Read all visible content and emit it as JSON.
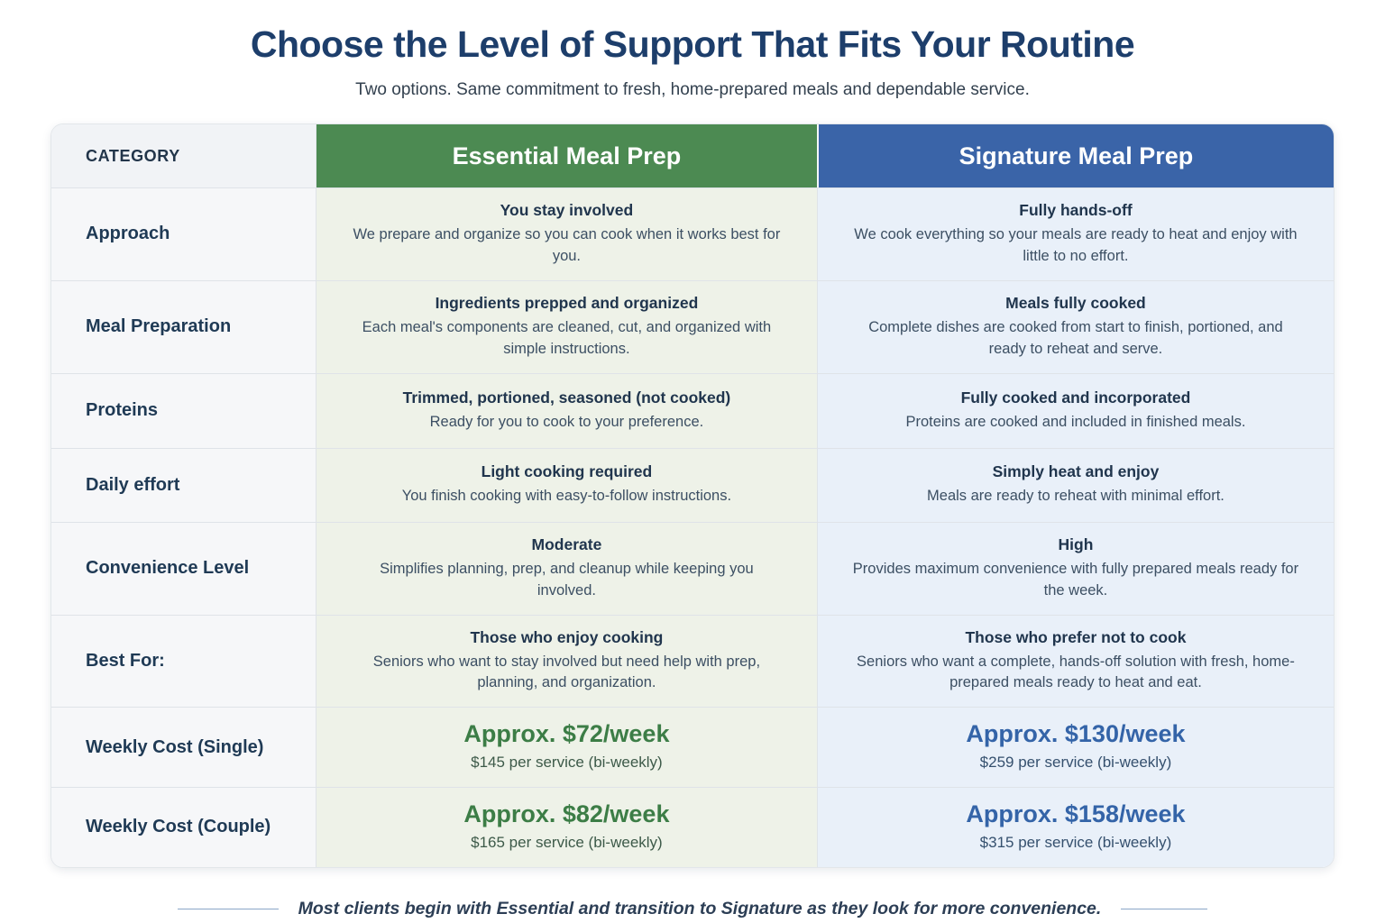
{
  "page": {
    "title": "Choose the Level of Support That Fits Your Routine",
    "subtitle": "Two options. Same commitment to fresh, home-prepared meals and dependable service.",
    "footer_note": "Most clients begin with Essential and transition to Signature as they look for more convenience."
  },
  "colors": {
    "title_navy": "#1d3e6b",
    "essential_header_green": "#4c8a52",
    "signature_header_blue": "#3a64a8",
    "essential_cell_bg": "#eef2e8",
    "signature_cell_bg": "#e9f0f9",
    "category_cell_bg": "#f6f7f9",
    "essential_price_green": "#3c7d46",
    "signature_price_blue": "#3464a8"
  },
  "table": {
    "header": {
      "category": "CATEGORY",
      "essential": "Essential Meal Prep",
      "signature": "Signature Meal Prep"
    },
    "rows": [
      {
        "category": "Approach",
        "essential": {
          "title": "You stay involved",
          "desc": "We prepare and organize so you can cook when it works best for you."
        },
        "signature": {
          "title": "Fully hands-off",
          "desc": "We cook everything so your meals are ready to heat and enjoy with little to no effort."
        }
      },
      {
        "category": "Meal Preparation",
        "essential": {
          "title": "Ingredients prepped and organized",
          "desc": "Each meal's components are cleaned, cut, and organized with simple instructions."
        },
        "signature": {
          "title": "Meals fully cooked",
          "desc": "Complete dishes are cooked from start to finish, portioned, and ready to reheat and serve."
        }
      },
      {
        "category": "Proteins",
        "essential": {
          "title": "Trimmed, portioned, seasoned (not cooked)",
          "desc": "Ready for you to cook to your preference."
        },
        "signature": {
          "title": "Fully cooked and incorporated",
          "desc": "Proteins are cooked and included in finished meals."
        }
      },
      {
        "category": "Daily effort",
        "essential": {
          "title": "Light cooking required",
          "desc": "You finish cooking with easy-to-follow instructions."
        },
        "signature": {
          "title": "Simply heat and enjoy",
          "desc": "Meals are ready to reheat with minimal effort."
        }
      },
      {
        "category": "Convenience Level",
        "essential": {
          "title": "Moderate",
          "desc": "Simplifies planning, prep, and cleanup while keeping you involved."
        },
        "signature": {
          "title": "High",
          "desc": "Provides maximum convenience with fully prepared meals ready for the week."
        }
      },
      {
        "category": "Best For:",
        "essential": {
          "title": "Those who enjoy cooking",
          "desc": "Seniors who want to stay involved but need help with prep, planning, and organization."
        },
        "signature": {
          "title": "Those who prefer not to cook",
          "desc": "Seniors who want a complete, hands-off solution with fresh, home-prepared meals ready to heat and eat."
        }
      },
      {
        "category": "Weekly Cost (Single)",
        "essential": {
          "title": "Approx. $72/week",
          "desc": "$145 per service (bi-weekly)"
        },
        "signature": {
          "title": "Approx. $130/week",
          "desc": "$259 per service (bi-weekly)"
        }
      },
      {
        "category": "Weekly Cost (Couple)",
        "essential": {
          "title": "Approx. $82/week",
          "desc": "$165 per service (bi-weekly)"
        },
        "signature": {
          "title": "Approx. $158/week",
          "desc": "$315 per service (bi-weekly)"
        }
      }
    ]
  }
}
